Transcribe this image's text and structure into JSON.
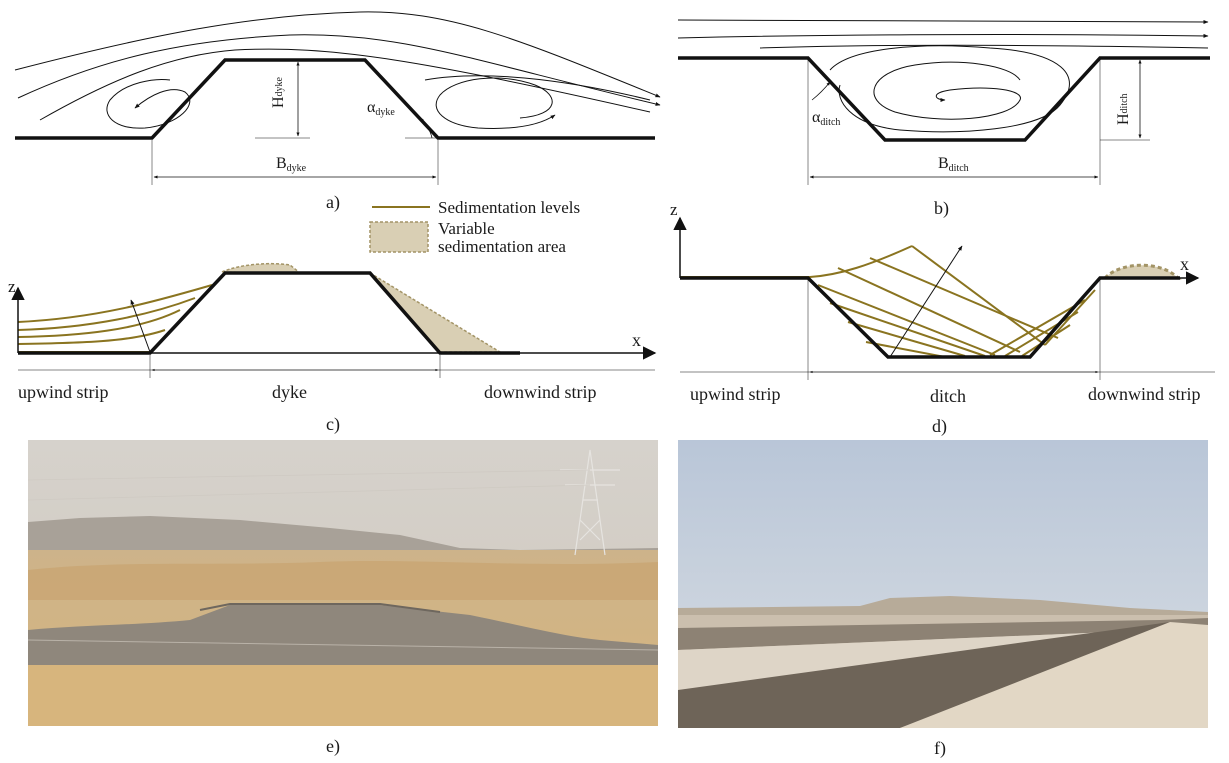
{
  "panels": {
    "a": {
      "caption": "a)",
      "height_label": "H",
      "height_sub": "dyke",
      "angle_label": "α",
      "angle_sub": "dyke",
      "base_label": "B",
      "base_sub": "dyke"
    },
    "b": {
      "caption": "b)",
      "angle_label": "α",
      "angle_sub": "ditch",
      "height_label": "H",
      "height_sub": "ditch",
      "base_label": "B",
      "base_sub": "ditch"
    },
    "c": {
      "caption": "c)",
      "z_axis": "z",
      "x_axis": "x",
      "zones": [
        "upwind strip",
        "dyke",
        "downwind strip"
      ]
    },
    "d": {
      "caption": "d)",
      "z_axis": "z",
      "x_axis": "x",
      "zones": [
        "upwind strip",
        "ditch",
        "downwind strip"
      ]
    },
    "e": {
      "caption": "e)"
    },
    "f": {
      "caption": "f)"
    }
  },
  "legend": {
    "line_label": "Sedimentation levels",
    "area_label_1": "Variable",
    "area_label_2": "sedimentation area"
  },
  "colors": {
    "sediment_line": "#8a7420",
    "sediment_area": "#d9cfb4",
    "structure": "#111111"
  }
}
